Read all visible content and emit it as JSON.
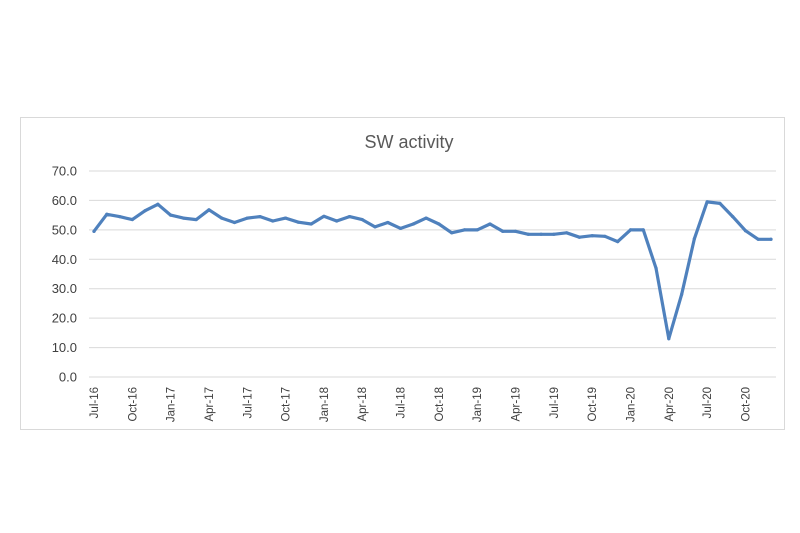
{
  "chart_data": {
    "type": "line",
    "title": "SW activity",
    "xlabel": "",
    "ylabel": "",
    "ylim": [
      0,
      70
    ],
    "y_ticks": [
      "0.0",
      "10.0",
      "20.0",
      "30.0",
      "40.0",
      "50.0",
      "60.0",
      "70.0"
    ],
    "y_tick_values": [
      0,
      10,
      20,
      30,
      40,
      50,
      60,
      70
    ],
    "x_tick_labels": [
      "Jul-16",
      "Oct-16",
      "Jan-17",
      "Apr-17",
      "Jul-17",
      "Oct-17",
      "Jan-18",
      "Apr-18",
      "Jul-18",
      "Oct-18",
      "Jan-19",
      "Apr-19",
      "Jul-19",
      "Oct-19",
      "Jan-20",
      "Apr-20",
      "Jul-20",
      "Oct-20"
    ],
    "grid": true,
    "legend": "none",
    "series_color": "#4f81bd",
    "series": [
      {
        "x": [
          "Jul-16",
          "Aug-16",
          "Sep-16",
          "Oct-16",
          "Nov-16",
          "Dec-16",
          "Jan-17",
          "Feb-17",
          "Mar-17",
          "Apr-17",
          "May-17",
          "Jun-17",
          "Jul-17",
          "Aug-17",
          "Sep-17",
          "Oct-17",
          "Nov-17",
          "Dec-17",
          "Jan-18",
          "Feb-18",
          "Mar-18",
          "Apr-18",
          "May-18",
          "Jun-18",
          "Jul-18",
          "Aug-18",
          "Sep-18",
          "Oct-18",
          "Nov-18",
          "Dec-18",
          "Jan-19",
          "Feb-19",
          "Mar-19",
          "Apr-19",
          "May-19",
          "Jun-19",
          "Jul-19",
          "Aug-19",
          "Sep-19",
          "Oct-19",
          "Nov-19",
          "Dec-19",
          "Jan-20",
          "Feb-20",
          "Mar-20",
          "Apr-20",
          "May-20",
          "Jun-20",
          "Jul-20",
          "Aug-20",
          "Sep-20",
          "Oct-20",
          "Nov-20",
          "Dec-20"
        ],
        "values": [
          49.5,
          55.3,
          54.5,
          53.5,
          56.5,
          58.7,
          55.0,
          54.0,
          53.5,
          56.8,
          54.0,
          52.5,
          54.0,
          54.5,
          53.0,
          54.0,
          52.6,
          52.0,
          54.6,
          53.0,
          54.5,
          53.5,
          51.0,
          52.5,
          50.5,
          52.0,
          54.0,
          52.0,
          49.0,
          50.0,
          50.0,
          52.0,
          49.5,
          49.5,
          48.5,
          48.5,
          48.5,
          49.0,
          47.5,
          48.0,
          47.8,
          46.0,
          50.0,
          50.0,
          37.0,
          13.0,
          28.0,
          47.0,
          59.5,
          59.0,
          54.5,
          49.7,
          46.8,
          46.8
        ]
      }
    ]
  }
}
